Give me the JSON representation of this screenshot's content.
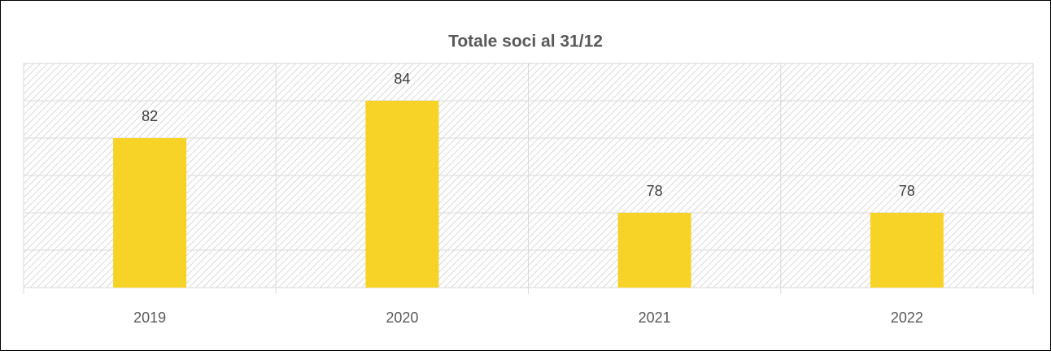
{
  "chart_data": {
    "type": "bar",
    "title": "Totale soci al 31/12",
    "categories": [
      "2019",
      "2020",
      "2021",
      "2022"
    ],
    "values": [
      82,
      84,
      78,
      78
    ],
    "color": "#f8d327",
    "ylim": [
      74,
      86
    ],
    "yticks": [
      74,
      76,
      78,
      80,
      82,
      84,
      86
    ],
    "grid": true
  }
}
